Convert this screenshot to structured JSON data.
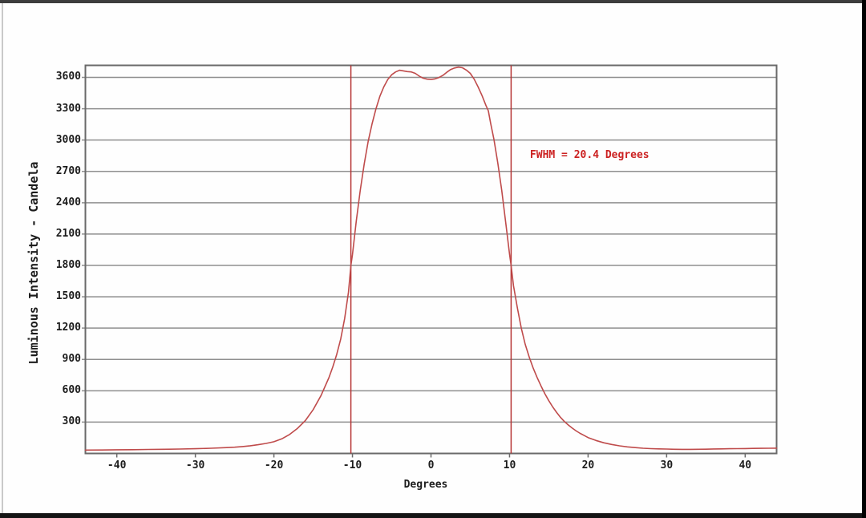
{
  "window": {
    "type": "chart-screenshot",
    "background": "#fefefe",
    "letterbox_color_top": "#3d3d3d",
    "letterbox_color_bottom": "#141414",
    "letterbox_color_right": "#000000"
  },
  "chart_data": {
    "type": "line",
    "title": "",
    "xlabel": "Degrees",
    "ylabel": "Luminous Intensity - Candela",
    "xlim": [
      -44,
      44
    ],
    "ylim": [
      0,
      3715
    ],
    "x_ticks": [
      -40,
      -30,
      -20,
      -10,
      0,
      10,
      20,
      30,
      40
    ],
    "y_ticks": [
      300,
      600,
      900,
      1200,
      1500,
      1800,
      2100,
      2400,
      2700,
      3000,
      3300,
      3600
    ],
    "grid": "horizontal-only",
    "legend": "none",
    "border_color": "#6a6a6a",
    "gridline_color": "#8f8f8f",
    "tick_text_color": "#1c1c1c",
    "annotation": {
      "text": "FWHM = 20.4 Degrees",
      "x_deg": 12.6,
      "y_candela": 2860,
      "color": "#cc2222"
    },
    "fwhm_lines": {
      "x_deg": [
        -10.2,
        10.2
      ],
      "color": "#b53434"
    },
    "series": [
      {
        "name": "luminous-intensity-curve",
        "color": "#bf4b4b",
        "points": [
          [
            -44,
            32
          ],
          [
            -42,
            33
          ],
          [
            -40,
            35
          ],
          [
            -38,
            36
          ],
          [
            -36,
            38
          ],
          [
            -34,
            40
          ],
          [
            -32,
            42
          ],
          [
            -30,
            45
          ],
          [
            -28,
            50
          ],
          [
            -26,
            56
          ],
          [
            -25,
            60
          ],
          [
            -24,
            66
          ],
          [
            -23,
            74
          ],
          [
            -22,
            84
          ],
          [
            -21,
            96
          ],
          [
            -20,
            112
          ],
          [
            -19,
            140
          ],
          [
            -18,
            182
          ],
          [
            -17,
            240
          ],
          [
            -16,
            315
          ],
          [
            -15,
            420
          ],
          [
            -14,
            555
          ],
          [
            -13,
            725
          ],
          [
            -12.5,
            830
          ],
          [
            -12,
            950
          ],
          [
            -11.5,
            1095
          ],
          [
            -11,
            1290
          ],
          [
            -10.5,
            1545
          ],
          [
            -10.2,
            1800
          ],
          [
            -10,
            1900
          ],
          [
            -9.5,
            2230
          ],
          [
            -9,
            2520
          ],
          [
            -8.5,
            2770
          ],
          [
            -8,
            2985
          ],
          [
            -7.5,
            3155
          ],
          [
            -7,
            3300
          ],
          [
            -6.5,
            3420
          ],
          [
            -6,
            3510
          ],
          [
            -5.5,
            3580
          ],
          [
            -5,
            3625
          ],
          [
            -4.5,
            3652
          ],
          [
            -4,
            3668
          ],
          [
            -3.5,
            3662
          ],
          [
            -3,
            3655
          ],
          [
            -2.5,
            3652
          ],
          [
            -2,
            3638
          ],
          [
            -1.5,
            3612
          ],
          [
            -1,
            3592
          ],
          [
            -0.5,
            3583
          ],
          [
            0,
            3580
          ],
          [
            0.5,
            3585
          ],
          [
            1,
            3598
          ],
          [
            1.5,
            3618
          ],
          [
            2,
            3648
          ],
          [
            2.5,
            3675
          ],
          [
            3,
            3690
          ],
          [
            3.5,
            3698
          ],
          [
            4,
            3692
          ],
          [
            4.5,
            3670
          ],
          [
            5,
            3638
          ],
          [
            5.5,
            3582
          ],
          [
            6,
            3508
          ],
          [
            6.5,
            3425
          ],
          [
            7,
            3330
          ],
          [
            7.3,
            3280
          ],
          [
            7.6,
            3160
          ],
          [
            8,
            3010
          ],
          [
            8.5,
            2780
          ],
          [
            9,
            2520
          ],
          [
            9.5,
            2215
          ],
          [
            10,
            1905
          ],
          [
            10.2,
            1800
          ],
          [
            10.5,
            1605
          ],
          [
            11,
            1390
          ],
          [
            11.5,
            1200
          ],
          [
            12,
            1045
          ],
          [
            12.5,
            925
          ],
          [
            13,
            820
          ],
          [
            13.5,
            730
          ],
          [
            14,
            648
          ],
          [
            14.5,
            572
          ],
          [
            15,
            505
          ],
          [
            15.5,
            445
          ],
          [
            16,
            392
          ],
          [
            16.5,
            345
          ],
          [
            17,
            305
          ],
          [
            17.5,
            272
          ],
          [
            18,
            242
          ],
          [
            18.5,
            215
          ],
          [
            19,
            192
          ],
          [
            19.5,
            172
          ],
          [
            20,
            152
          ],
          [
            21,
            124
          ],
          [
            22,
            102
          ],
          [
            23,
            86
          ],
          [
            24,
            73
          ],
          [
            25,
            63
          ],
          [
            26,
            56
          ],
          [
            27,
            50
          ],
          [
            28,
            46
          ],
          [
            29,
            44
          ],
          [
            30,
            42
          ],
          [
            31,
            40
          ],
          [
            32,
            39
          ],
          [
            33,
            39
          ],
          [
            34,
            40
          ],
          [
            35,
            41
          ],
          [
            36,
            43
          ],
          [
            37,
            44
          ],
          [
            38,
            45
          ],
          [
            39,
            46
          ],
          [
            40,
            47
          ],
          [
            41,
            48
          ],
          [
            42,
            49
          ],
          [
            43,
            50
          ],
          [
            44,
            51
          ]
        ]
      }
    ]
  }
}
